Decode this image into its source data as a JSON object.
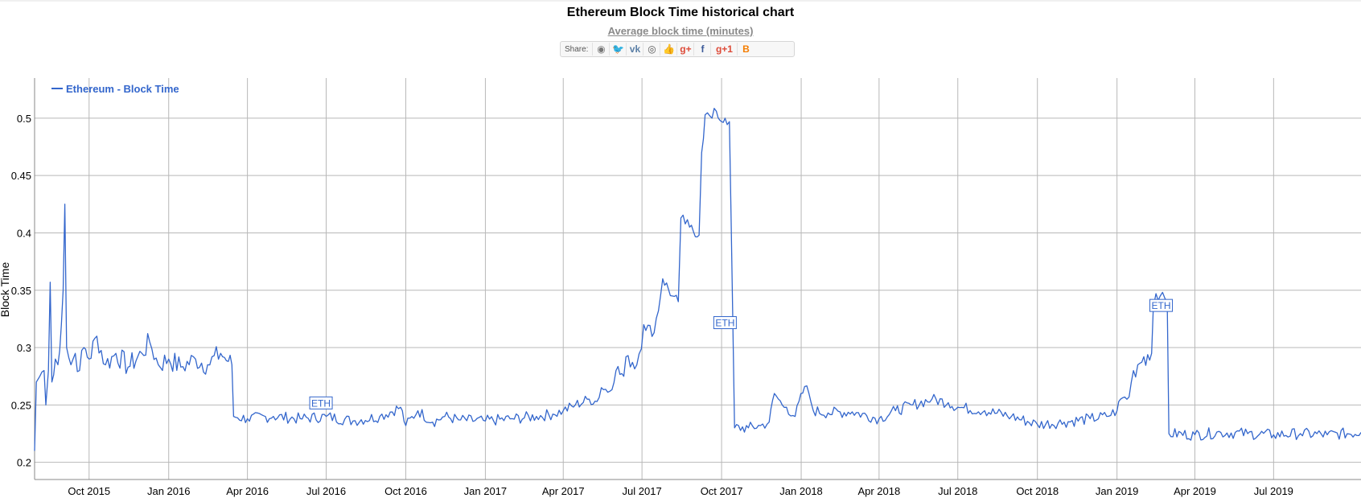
{
  "header": {
    "title": "Ethereum Block Time historical chart",
    "subtitle": "Average block time (minutes)",
    "share_label": "Share:"
  },
  "share_buttons": [
    {
      "name": "reddit",
      "glyph": "◉",
      "color": "#777777"
    },
    {
      "name": "twitter",
      "glyph": "🐦",
      "color": "#35a8e0"
    },
    {
      "name": "vk",
      "glyph": "vk",
      "color": "#5b7fa6"
    },
    {
      "name": "weibo",
      "glyph": "◎",
      "color": "#555555"
    },
    {
      "name": "like",
      "glyph": "👍",
      "color": "#5b7fa6"
    },
    {
      "name": "google-plus",
      "glyph": "g+",
      "color": "#dd4b39"
    },
    {
      "name": "facebook",
      "glyph": "f",
      "color": "#3b5998"
    },
    {
      "name": "google-plus-one",
      "glyph": "g+1",
      "color": "#dd4b39"
    },
    {
      "name": "blogger",
      "glyph": "B",
      "color": "#f57d00"
    }
  ],
  "chart_data": {
    "type": "line",
    "title": "Ethereum Block Time historical chart",
    "subtitle": "Average block time (minutes)",
    "xlabel": "",
    "ylabel": "Block Time",
    "ylim": [
      0.185,
      0.535
    ],
    "yticks": [
      0.2,
      0.25,
      0.3,
      0.35,
      0.4,
      0.45,
      0.5
    ],
    "ytick_labels": [
      "0.2",
      "0.25",
      "0.3",
      "0.35",
      "0.4",
      "0.45",
      "0.5"
    ],
    "xrange": [
      "2015-07-30",
      "2019-10-10"
    ],
    "xticks": [
      {
        "date": "2015-10-01",
        "label": "Oct 2015"
      },
      {
        "date": "2016-01-01",
        "label": "Jan 2016"
      },
      {
        "date": "2016-04-01",
        "label": "Apr 2016"
      },
      {
        "date": "2016-07-01",
        "label": "Jul 2016"
      },
      {
        "date": "2016-10-01",
        "label": "Oct 2016"
      },
      {
        "date": "2017-01-01",
        "label": "Jan 2017"
      },
      {
        "date": "2017-04-01",
        "label": "Apr 2017"
      },
      {
        "date": "2017-07-01",
        "label": "Jul 2017"
      },
      {
        "date": "2017-10-01",
        "label": "Oct 2017"
      },
      {
        "date": "2018-01-01",
        "label": "Jan 2018"
      },
      {
        "date": "2018-04-01",
        "label": "Apr 2018"
      },
      {
        "date": "2018-07-01",
        "label": "Jul 2018"
      },
      {
        "date": "2018-10-01",
        "label": "Oct 2018"
      },
      {
        "date": "2019-01-01",
        "label": "Jan 2019"
      },
      {
        "date": "2019-04-01",
        "label": "Apr 2019"
      },
      {
        "date": "2019-07-01",
        "label": "Jul 2019"
      }
    ],
    "grid": true,
    "legend": {
      "placement": "top-left",
      "entries": [
        "Ethereum - Block Time"
      ]
    },
    "series": [
      {
        "name": "Ethereum - Block Time",
        "color": "#3366cc",
        "points": [
          [
            "2015-07-30",
            0.21
          ],
          [
            "2015-08-01",
            0.27
          ],
          [
            "2015-08-05",
            0.275
          ],
          [
            "2015-08-10",
            0.28
          ],
          [
            "2015-08-12",
            0.25
          ],
          [
            "2015-08-15",
            0.28
          ],
          [
            "2015-08-17",
            0.357
          ],
          [
            "2015-08-19",
            0.27
          ],
          [
            "2015-08-23",
            0.29
          ],
          [
            "2015-08-26",
            0.285
          ],
          [
            "2015-08-30",
            0.32
          ],
          [
            "2015-09-01",
            0.35
          ],
          [
            "2015-09-03",
            0.425
          ],
          [
            "2015-09-05",
            0.3
          ],
          [
            "2015-09-10",
            0.285
          ],
          [
            "2015-09-15",
            0.295
          ],
          [
            "2015-09-20",
            0.28
          ],
          [
            "2015-09-25",
            0.3
          ],
          [
            "2015-10-01",
            0.29
          ],
          [
            "2015-10-10",
            0.31
          ],
          [
            "2015-10-20",
            0.285
          ],
          [
            "2015-11-01",
            0.295
          ],
          [
            "2015-11-15",
            0.283
          ],
          [
            "2015-12-01",
            0.295
          ],
          [
            "2015-12-10",
            0.305
          ],
          [
            "2015-12-20",
            0.285
          ],
          [
            "2016-01-01",
            0.29
          ],
          [
            "2016-01-15",
            0.283
          ],
          [
            "2016-02-01",
            0.29
          ],
          [
            "2016-02-15",
            0.285
          ],
          [
            "2016-03-01",
            0.295
          ],
          [
            "2016-03-10",
            0.288
          ],
          [
            "2016-03-14",
            0.285
          ],
          [
            "2016-03-16",
            0.24
          ],
          [
            "2016-04-01",
            0.238
          ],
          [
            "2016-05-01",
            0.24
          ],
          [
            "2016-06-01",
            0.238
          ],
          [
            "2016-07-01",
            0.24
          ],
          [
            "2016-08-01",
            0.236
          ],
          [
            "2016-09-01",
            0.24
          ],
          [
            "2016-09-25",
            0.248
          ],
          [
            "2016-10-01",
            0.232
          ],
          [
            "2016-10-15",
            0.245
          ],
          [
            "2016-11-01",
            0.235
          ],
          [
            "2016-11-15",
            0.24
          ],
          [
            "2016-12-01",
            0.237
          ],
          [
            "2017-01-01",
            0.236
          ],
          [
            "2017-02-01",
            0.238
          ],
          [
            "2017-03-01",
            0.24
          ],
          [
            "2017-03-20",
            0.242
          ],
          [
            "2017-04-01",
            0.245
          ],
          [
            "2017-04-15",
            0.25
          ],
          [
            "2017-05-01",
            0.255
          ],
          [
            "2017-05-10",
            0.253
          ],
          [
            "2017-05-15",
            0.265
          ],
          [
            "2017-05-25",
            0.262
          ],
          [
            "2017-06-01",
            0.28
          ],
          [
            "2017-06-10",
            0.275
          ],
          [
            "2017-06-15",
            0.293
          ],
          [
            "2017-06-25",
            0.285
          ],
          [
            "2017-07-03",
            0.32
          ],
          [
            "2017-07-15",
            0.313
          ],
          [
            "2017-07-25",
            0.36
          ],
          [
            "2017-08-05",
            0.345
          ],
          [
            "2017-08-12",
            0.34
          ],
          [
            "2017-08-15",
            0.413
          ],
          [
            "2017-08-25",
            0.405
          ],
          [
            "2017-09-05",
            0.398
          ],
          [
            "2017-09-08",
            0.47
          ],
          [
            "2017-09-12",
            0.503
          ],
          [
            "2017-09-20",
            0.5
          ],
          [
            "2017-09-25",
            0.506
          ],
          [
            "2017-10-01",
            0.497
          ],
          [
            "2017-10-05",
            0.5
          ],
          [
            "2017-10-10",
            0.497
          ],
          [
            "2017-10-16",
            0.23
          ],
          [
            "2017-11-01",
            0.23
          ],
          [
            "2017-11-15",
            0.232
          ],
          [
            "2017-11-25",
            0.235
          ],
          [
            "2017-12-01",
            0.26
          ],
          [
            "2017-12-10",
            0.25
          ],
          [
            "2017-12-15",
            0.248
          ],
          [
            "2017-12-25",
            0.24
          ],
          [
            "2018-01-05",
            0.266
          ],
          [
            "2018-01-10",
            0.26
          ],
          [
            "2018-01-15",
            0.245
          ],
          [
            "2018-02-01",
            0.243
          ],
          [
            "2018-03-01",
            0.244
          ],
          [
            "2018-04-01",
            0.238
          ],
          [
            "2018-04-20",
            0.245
          ],
          [
            "2018-05-10",
            0.25
          ],
          [
            "2018-06-01",
            0.255
          ],
          [
            "2018-06-20",
            0.252
          ],
          [
            "2018-07-01",
            0.248
          ],
          [
            "2018-08-01",
            0.245
          ],
          [
            "2018-09-01",
            0.24
          ],
          [
            "2018-10-01",
            0.233
          ],
          [
            "2018-11-01",
            0.235
          ],
          [
            "2018-12-01",
            0.238
          ],
          [
            "2018-12-20",
            0.24
          ],
          [
            "2019-01-01",
            0.245
          ],
          [
            "2019-01-05",
            0.255
          ],
          [
            "2019-01-15",
            0.257
          ],
          [
            "2019-01-20",
            0.28
          ],
          [
            "2019-01-25",
            0.285
          ],
          [
            "2019-02-01",
            0.292
          ],
          [
            "2019-02-10",
            0.295
          ],
          [
            "2019-02-12",
            0.335
          ],
          [
            "2019-02-15",
            0.347
          ],
          [
            "2019-02-20",
            0.345
          ],
          [
            "2019-02-28",
            0.34
          ],
          [
            "2019-03-02",
            0.225
          ],
          [
            "2019-04-01",
            0.224
          ],
          [
            "2019-05-01",
            0.226
          ],
          [
            "2019-06-01",
            0.225
          ],
          [
            "2019-07-01",
            0.224
          ],
          [
            "2019-08-01",
            0.225
          ],
          [
            "2019-09-01",
            0.224
          ],
          [
            "2019-10-10",
            0.226
          ]
        ]
      }
    ],
    "annotations": [
      {
        "label": "ETH",
        "date": "2016-06-25",
        "value": 0.25
      },
      {
        "label": "ETH",
        "date": "2017-10-05",
        "value": 0.32
      },
      {
        "label": "ETH",
        "date": "2019-02-21",
        "value": 0.335
      }
    ]
  }
}
